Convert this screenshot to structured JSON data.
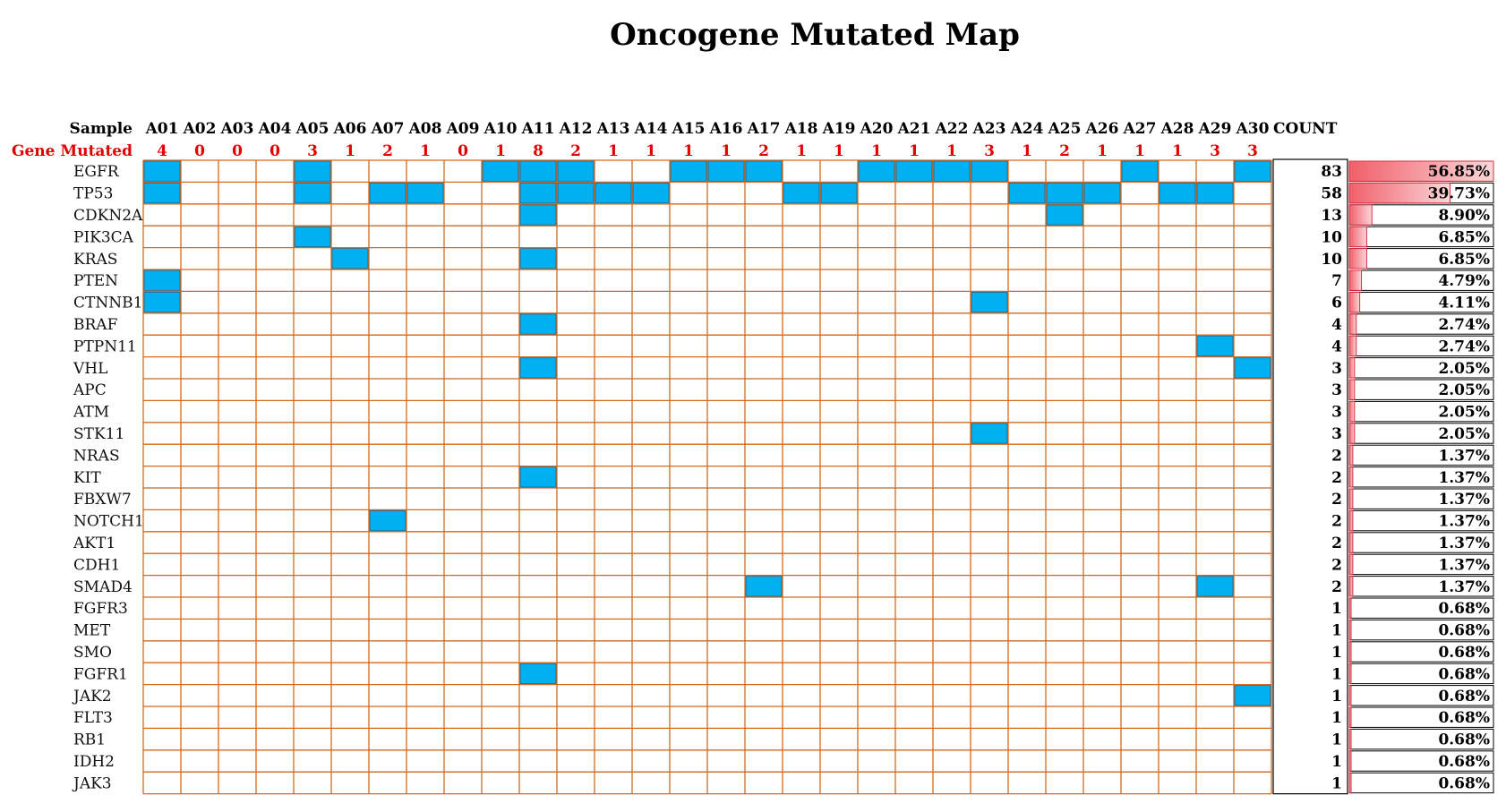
{
  "colors": {
    "grid_line": "#d2691e",
    "mutated_cell": "#00b0f0",
    "mutated_cell_border": "#2b6d8f",
    "gene_mutated_label": "#e00000",
    "pct_bar": "#f0606a",
    "pct_bar_light": "#fbd6d9"
  },
  "chart_data": {
    "type": "heatmap",
    "title": "Oncogene Mutated Map",
    "row_header_label": "Sample",
    "mutated_row_label": "Gene Mutated",
    "count_header": "COUNT",
    "samples": [
      "A01",
      "A02",
      "A03",
      "A04",
      "A05",
      "A06",
      "A07",
      "A08",
      "A09",
      "A10",
      "A11",
      "A12",
      "A13",
      "A14",
      "A15",
      "A16",
      "A17",
      "A18",
      "A19",
      "A20",
      "A21",
      "A22",
      "A23",
      "A24",
      "A25",
      "A26",
      "A27",
      "A28",
      "A29",
      "A30"
    ],
    "genes_mutated_per_sample": [
      4,
      0,
      0,
      0,
      3,
      1,
      2,
      1,
      0,
      1,
      8,
      2,
      1,
      1,
      1,
      1,
      2,
      1,
      1,
      1,
      1,
      1,
      3,
      1,
      2,
      1,
      1,
      1,
      3,
      3
    ],
    "genes": [
      "EGFR",
      "TP53",
      "CDKN2A",
      "PIK3CA",
      "KRAS",
      "PTEN",
      "CTNNB1",
      "BRAF",
      "PTPN11",
      "VHL",
      "APC",
      "ATM",
      "STK11",
      "NRAS",
      "KIT",
      "FBXW7",
      "NOTCH1",
      "AKT1",
      "CDH1",
      "SMAD4",
      "FGFR3",
      "MET",
      "SMO",
      "FGFR1",
      "JAK2",
      "FLT3",
      "RB1",
      "IDH2",
      "JAK3"
    ],
    "counts": [
      83,
      58,
      13,
      10,
      10,
      7,
      6,
      4,
      4,
      3,
      3,
      3,
      3,
      2,
      2,
      2,
      2,
      2,
      2,
      2,
      1,
      1,
      1,
      1,
      1,
      1,
      1,
      1,
      1
    ],
    "percent_labels": [
      "56.85%",
      "39.73%",
      "8.90%",
      "6.85%",
      "6.85%",
      "4.79%",
      "4.11%",
      "2.74%",
      "2.74%",
      "2.05%",
      "2.05%",
      "2.05%",
      "2.05%",
      "1.37%",
      "1.37%",
      "1.37%",
      "1.37%",
      "1.37%",
      "1.37%",
      "1.37%",
      "0.68%",
      "0.68%",
      "0.68%",
      "0.68%",
      "0.68%",
      "0.68%",
      "0.68%",
      "0.68%",
      "0.68%"
    ],
    "percent_values": [
      56.85,
      39.73,
      8.9,
      6.85,
      6.85,
      4.79,
      4.11,
      2.74,
      2.74,
      2.05,
      2.05,
      2.05,
      2.05,
      1.37,
      1.37,
      1.37,
      1.37,
      1.37,
      1.37,
      1.37,
      0.68,
      0.68,
      0.68,
      0.68,
      0.68,
      0.68,
      0.68,
      0.68,
      0.68
    ],
    "mutations": {
      "EGFR": [
        "A01",
        "A05",
        "A10",
        "A11",
        "A12",
        "A15",
        "A16",
        "A17",
        "A20",
        "A21",
        "A22",
        "A23",
        "A27",
        "A30"
      ],
      "TP53": [
        "A01",
        "A05",
        "A07",
        "A08",
        "A11",
        "A12",
        "A13",
        "A14",
        "A18",
        "A19",
        "A24",
        "A25",
        "A26",
        "A28",
        "A29"
      ],
      "CDKN2A": [
        "A11",
        "A25"
      ],
      "PIK3CA": [
        "A05"
      ],
      "KRAS": [
        "A06",
        "A11"
      ],
      "PTEN": [
        "A01"
      ],
      "CTNNB1": [
        "A01",
        "A23"
      ],
      "BRAF": [
        "A11"
      ],
      "PTPN11": [
        "A29"
      ],
      "VHL": [
        "A11",
        "A30"
      ],
      "STK11": [
        "A23"
      ],
      "KIT": [
        "A11"
      ],
      "NOTCH1": [
        "A07"
      ],
      "SMAD4": [
        "A17",
        "A29"
      ],
      "FGFR1": [
        "A11"
      ],
      "JAK2": [
        "A30"
      ]
    }
  }
}
